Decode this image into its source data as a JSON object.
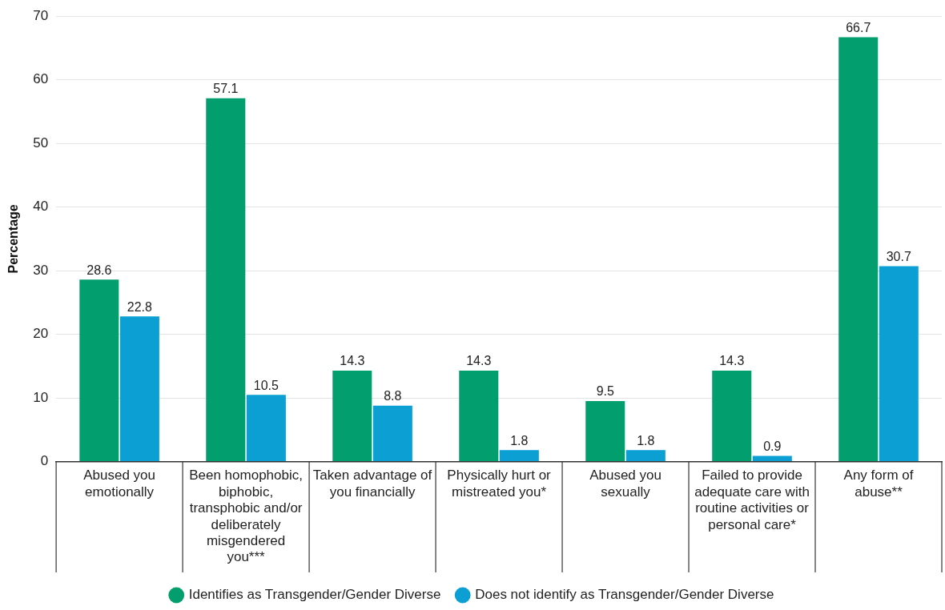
{
  "chart_data": {
    "type": "bar",
    "ylabel": "Percentage",
    "categories": [
      "Abused you emotionally",
      "Been homophobic, biphobic, transphobic and/or deliberately misgendered you***",
      "Taken advantage of you financially",
      "Physically hurt or mistreated you*",
      "Abused you sexually",
      "Failed to provide adequate care with routine activities or personal care*",
      "Any form of abuse**"
    ],
    "series": [
      {
        "name": "Identifies as Transgender/Gender Diverse",
        "color": "#039e6e",
        "values": [
          28.6,
          57.1,
          14.3,
          14.3,
          9.5,
          14.3,
          66.7
        ]
      },
      {
        "name": "Does not identify as Transgender/Gender Diverse",
        "color": "#0b9fd3",
        "values": [
          22.8,
          10.5,
          8.8,
          1.8,
          1.8,
          0.9,
          30.7
        ]
      }
    ],
    "ylim": [
      0,
      70
    ],
    "yticks": [
      0,
      10,
      20,
      30,
      40,
      50,
      60,
      70
    ],
    "grid": "y",
    "legend": "bottom",
    "data_labels": true
  }
}
